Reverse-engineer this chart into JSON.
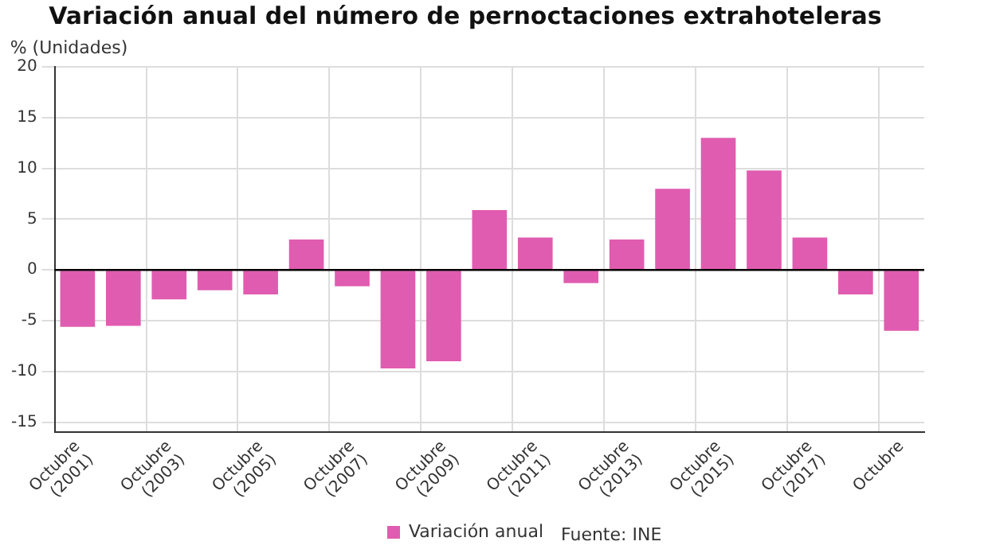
{
  "chart_data": {
    "type": "bar",
    "title": "Variación anual del número de pernoctaciones extrahoteleras",
    "ylabel": "% (Unidades)",
    "categories": [
      "Octubre (2001)",
      null,
      "Octubre (2003)",
      null,
      "Octubre (2005)",
      null,
      "Octubre (2007)",
      null,
      "Octubre (2009)",
      null,
      "Octubre (2011)",
      null,
      "Octubre (2013)",
      null,
      "Octubre (2015)",
      null,
      "Octubre (2017)",
      null,
      "Octubre"
    ],
    "series": [
      {
        "name": "Variación anual",
        "color": "#e05cb0",
        "values": [
          -5.6,
          -5.5,
          -2.9,
          -2.0,
          -2.4,
          3.0,
          -1.6,
          -9.7,
          -9.0,
          5.9,
          3.2,
          -1.3,
          3.0,
          8.0,
          13.0,
          9.8,
          3.2,
          -2.4,
          -6.0
        ]
      }
    ],
    "ylim": [
      -16,
      20
    ],
    "yticks": [
      -15,
      -10,
      -5,
      0,
      5,
      10,
      15,
      20
    ],
    "grid": true,
    "legend": "bottom",
    "annotations": [
      "Fuente: INE"
    ]
  }
}
